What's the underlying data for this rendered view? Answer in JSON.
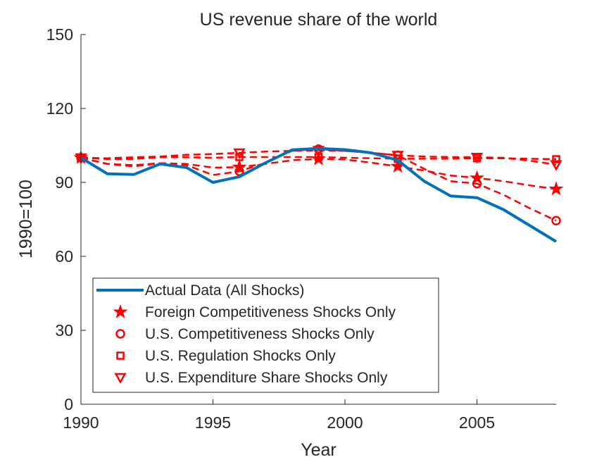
{
  "chart_data": {
    "type": "line",
    "title": "US revenue share of the world",
    "xlabel": "Year",
    "ylabel": "1990=100",
    "xlim": [
      1990,
      2008
    ],
    "ylim": [
      0,
      150
    ],
    "xticks": [
      1990,
      1995,
      2000,
      2005
    ],
    "yticks": [
      0,
      30,
      60,
      90,
      120,
      150
    ],
    "grid": false,
    "legend_position": "bottom-left",
    "colors": {
      "actual": "#0072BD",
      "counterfactual": "#FF0000",
      "axis": "#262626"
    },
    "x": [
      1990,
      1991,
      1992,
      1993,
      1994,
      1995,
      1996,
      1997,
      1998,
      1999,
      2000,
      2001,
      2002,
      2003,
      2004,
      2005,
      2006,
      2007,
      2008
    ],
    "series": [
      {
        "name": "Actual Data (All Shocks)",
        "style": "solid",
        "marker": "none",
        "values": [
          100,
          93.5,
          93.2,
          97.5,
          96,
          90,
          92.3,
          98,
          103.2,
          103.8,
          103.3,
          102,
          99,
          90.5,
          84.5,
          83.8,
          79,
          72.5,
          66
        ]
      },
      {
        "name": "Foreign Competitiveness Shocks Only",
        "style": "dashed",
        "marker": "pentagram",
        "marker_years": [
          1990,
          1996,
          1999,
          2002,
          2005,
          2008
        ],
        "values": [
          100,
          97.5,
          97,
          97.8,
          97.5,
          96,
          96.2,
          97.5,
          99,
          99.5,
          99.3,
          98,
          96.5,
          94.8,
          92.8,
          91.8,
          90.5,
          88.8,
          87.3
        ]
      },
      {
        "name": "U.S. Competitiveness Shocks Only",
        "style": "dashed",
        "marker": "circle",
        "marker_years": [
          1990,
          1996,
          1999,
          2002,
          2005,
          2008
        ],
        "values": [
          100,
          97.5,
          96.5,
          97.8,
          97,
          93,
          94.5,
          98,
          102.8,
          103.5,
          102.8,
          102,
          101,
          95.5,
          90.5,
          89.5,
          85,
          79.5,
          74.5
        ]
      },
      {
        "name": "U.S. Regulation Shocks Only",
        "style": "dashed",
        "marker": "square",
        "marker_years": [
          1990,
          1996,
          1999,
          2002,
          2005,
          2008
        ],
        "values": [
          100,
          99.5,
          99.5,
          100.2,
          100.2,
          100,
          100.3,
          100.3,
          100.3,
          100.3,
          100,
          99.8,
          99.6,
          99.6,
          99.6,
          99.8,
          99.8,
          99.6,
          99.4
        ]
      },
      {
        "name": "U.S. Expenditure Share Shocks Only",
        "style": "dashed",
        "marker": "triangle-down",
        "marker_years": [
          1990,
          1996,
          1999,
          2002,
          2005,
          2008
        ],
        "values": [
          100,
          99.8,
          100.2,
          100.5,
          101.2,
          101.5,
          102,
          102.5,
          102.8,
          103,
          102.8,
          102,
          101,
          100.5,
          100.3,
          100.2,
          100,
          98.8,
          97.2
        ]
      }
    ]
  }
}
